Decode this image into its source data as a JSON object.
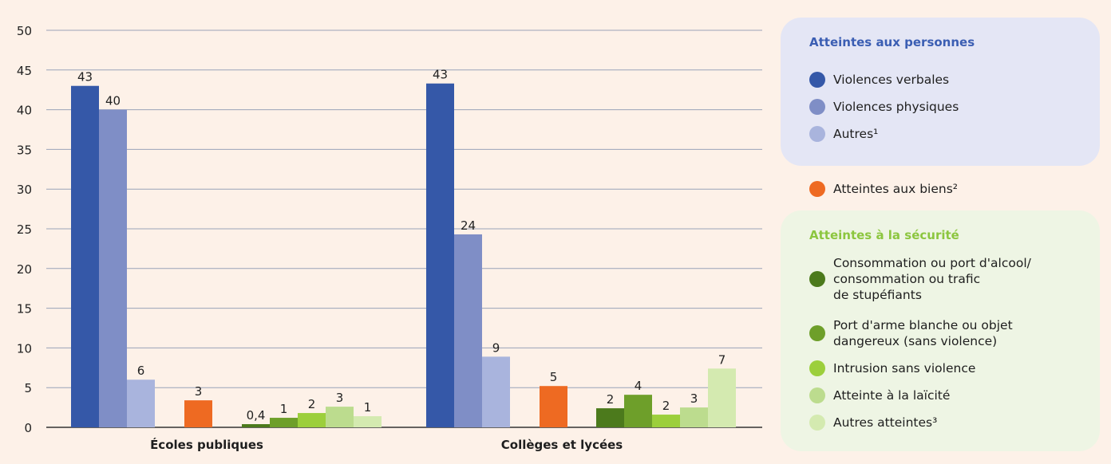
{
  "chart_data": {
    "type": "bar",
    "ylim": [
      0,
      50
    ],
    "yticks": [
      "0",
      "5",
      "10",
      "15",
      "20",
      "25",
      "30",
      "35",
      "40",
      "45",
      "50"
    ],
    "grid": true,
    "legend_position": "right",
    "groups": [
      {
        "name": "Écoles publiques",
        "bars": [
          {
            "series": "Violences verbales",
            "value": 43,
            "label": "43"
          },
          {
            "series": "Violences physiques",
            "value": 40,
            "label": "40"
          },
          {
            "series": "Autres¹",
            "value": 6,
            "label": "6"
          },
          {
            "series": "Atteintes aux biens²",
            "value": 3.4,
            "label": "3"
          },
          {
            "series": "Consommation ou port d'alcool/ consommation ou trafic de stupéfiants",
            "value": 0.4,
            "label": "0,4"
          },
          {
            "series": "Port d'arme blanche ou objet dangereux (sans violence)",
            "value": 1.2,
            "label": "1"
          },
          {
            "series": "Intrusion sans violence",
            "value": 1.8,
            "label": "2"
          },
          {
            "series": "Atteinte à la laïcité",
            "value": 2.6,
            "label": "3"
          },
          {
            "series": "Autres atteintes³",
            "value": 1.4,
            "label": "1"
          }
        ]
      },
      {
        "name": "Collèges et lycées",
        "bars": [
          {
            "series": "Violences verbales",
            "value": 43.3,
            "label": "43"
          },
          {
            "series": "Violences physiques",
            "value": 24.3,
            "label": "24"
          },
          {
            "series": "Autres¹",
            "value": 8.9,
            "label": "9"
          },
          {
            "series": "Atteintes aux biens²",
            "value": 5.2,
            "label": "5"
          },
          {
            "series": "Consommation ou port d'alcool/ consommation ou trafic de stupéfiants",
            "value": 2.4,
            "label": "2"
          },
          {
            "series": "Port d'arme blanche ou objet dangereux (sans violence)",
            "value": 4.1,
            "label": "4"
          },
          {
            "series": "Intrusion sans violence",
            "value": 1.6,
            "label": "2"
          },
          {
            "series": "Atteinte à la laïcité",
            "value": 2.5,
            "label": "3"
          },
          {
            "series": "Autres atteintes³",
            "value": 7.4,
            "label": "7"
          }
        ]
      }
    ],
    "series_colors": {
      "Violences verbales": "#3558a8",
      "Violences physiques": "#7f8ec6",
      "Autres¹": "#a9b4dd",
      "Atteintes aux biens²": "#ee6a22",
      "Consommation ou port d'alcool/ consommation ou trafic de stupéfiants": "#4c7a1c",
      "Port d'arme blanche ou objet dangereux (sans violence)": "#6e9f2a",
      "Intrusion sans violence": "#9ccf3c",
      "Atteinte à la laïcité": "#bcdc8e",
      "Autres atteintes³": "#d4eab0"
    }
  },
  "legend": {
    "personnes": {
      "heading": "Atteintes aux personnes",
      "heading_color": "#3b5eb3",
      "items": [
        {
          "label": "Violences verbales",
          "color": "#3558a8"
        },
        {
          "label": "Violences physiques",
          "color": "#7f8ec6"
        },
        {
          "label": "Autres¹",
          "color": "#a9b4dd"
        }
      ]
    },
    "biens": {
      "label": "Atteintes aux biens²",
      "color": "#ee6a22"
    },
    "securite": {
      "heading": "Atteintes à la sécurité",
      "heading_color": "#8cc63f",
      "items": [
        {
          "label": "Consommation ou port d'alcool/\nconsommation ou trafic\nde stupéfiants",
          "color": "#4c7a1c"
        },
        {
          "label": "Port d'arme blanche ou objet\ndangereux (sans violence)",
          "color": "#6e9f2a"
        },
        {
          "label": "Intrusion sans violence",
          "color": "#9ccf3c"
        },
        {
          "label": "Atteinte à la laïcité",
          "color": "#bcdc8e"
        },
        {
          "label": "Autres atteintes³",
          "color": "#d4eab0"
        }
      ]
    }
  }
}
